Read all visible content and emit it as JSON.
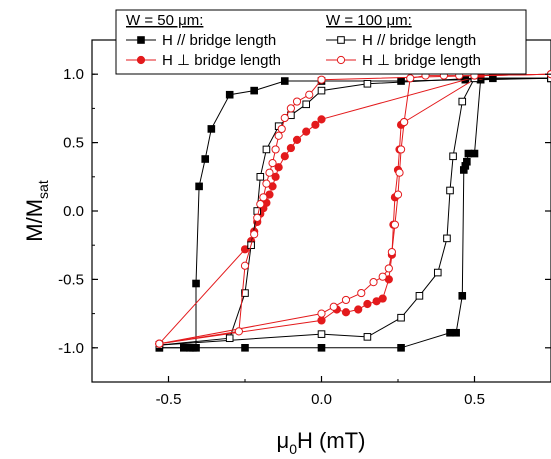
{
  "chart_data": {
    "type": "scatter",
    "xlabel": "μ0H (mT)",
    "ylabel": "M/Msat",
    "xlim": [
      -0.75,
      0.75
    ],
    "ylim": [
      -1.25,
      1.25
    ],
    "xticks": [
      -0.5,
      0.0,
      0.5
    ],
    "xtick_labels": [
      "-0.5",
      "0.0",
      "0.5"
    ],
    "yticks": [
      -1.0,
      -0.5,
      0.0,
      0.5,
      1.0
    ],
    "ytick_labels": [
      "-1.0",
      "-0.5",
      "0.0",
      "0.5",
      "1.0"
    ],
    "grid": false,
    "legend": {
      "placement": "top",
      "groups": [
        "W = 50 μm:",
        "W = 100 μm:"
      ]
    },
    "series": [
      {
        "name": "H // bridge length",
        "group": "W = 50 μm:",
        "color": "#000000",
        "marker": "square-filled",
        "x": [
          -0.53,
          -0.41,
          -0.42,
          -0.43,
          -0.45,
          -0.5,
          -0.53
        ],
        "y": [
          -0.97,
          -0.98,
          -0.97,
          -0.96,
          -0.99,
          -1.0,
          -1.0
        ],
        "segments": [
          {
            "x": [
              -0.53,
              -0.45,
              -0.43,
              -0.42,
              -0.41,
              -0.41,
              -0.4,
              -0.38,
              -0.36,
              -0.3,
              -0.22,
              -0.12,
              0.0,
              0.26,
              0.47,
              0.52,
              0.56,
              0.75
            ],
            "y": [
              -1.0,
              -1.0,
              -1.0,
              -1.0,
              -1.0,
              -0.53,
              0.18,
              0.38,
              0.6,
              0.85,
              0.88,
              0.95,
              0.95,
              0.95,
              0.96,
              0.96,
              0.97,
              0.97
            ]
          },
          {
            "x": [
              0.75,
              0.52,
              0.5,
              0.48,
              0.475,
              0.47,
              0.465,
              0.46,
              0.44,
              0.42,
              0.26,
              0.0,
              -0.25,
              -0.53
            ],
            "y": [
              0.97,
              0.96,
              0.42,
              0.42,
              0.36,
              0.33,
              0.3,
              -0.62,
              -0.89,
              -0.89,
              -1.0,
              -1.0,
              -1.0,
              -1.0
            ]
          }
        ]
      },
      {
        "name": "H ⊥ bridge length",
        "group": "W = 50 μm:",
        "color": "#e31a1c",
        "marker": "circle-filled",
        "segments": [
          {
            "x": [
              -0.53,
              -0.25,
              -0.23,
              -0.22,
              -0.21,
              -0.2,
              -0.19,
              -0.18,
              -0.17,
              -0.16,
              -0.15,
              -0.14,
              -0.12,
              -0.1,
              -0.08,
              -0.05,
              -0.02,
              0.0,
              0.52,
              0.75
            ],
            "y": [
              -0.97,
              -0.28,
              -0.22,
              -0.15,
              -0.08,
              -0.02,
              0.02,
              0.06,
              0.12,
              0.18,
              0.25,
              0.32,
              0.4,
              0.46,
              0.52,
              0.58,
              0.63,
              0.67,
              0.99,
              1.0
            ]
          },
          {
            "x": [
              0.75,
              0.52,
              0.27,
              0.26,
              0.255,
              0.25,
              0.24,
              0.235,
              0.23,
              0.22,
              0.2,
              0.18,
              0.15,
              0.12,
              0.08,
              0.05,
              0.0,
              -0.53
            ],
            "y": [
              1.0,
              0.99,
              0.65,
              0.63,
              0.45,
              0.3,
              0.1,
              -0.1,
              -0.32,
              -0.5,
              -0.64,
              -0.66,
              -0.68,
              -0.72,
              -0.74,
              -0.72,
              -0.8,
              -0.97
            ]
          }
        ]
      },
      {
        "name": "H // bridge length",
        "group": "W = 100 μm:",
        "color": "#000000",
        "marker": "square-open",
        "segments": [
          {
            "x": [
              -0.53,
              -0.3,
              -0.25,
              -0.23,
              -0.21,
              -0.2,
              -0.18,
              -0.14,
              -0.1,
              -0.05,
              0.0,
              0.15,
              0.5,
              0.75
            ],
            "y": [
              -0.98,
              -0.93,
              -0.6,
              -0.25,
              0.0,
              0.25,
              0.45,
              0.62,
              0.7,
              0.78,
              0.88,
              0.93,
              0.97,
              0.97
            ]
          },
          {
            "x": [
              0.75,
              0.5,
              0.46,
              0.43,
              0.42,
              0.41,
              0.38,
              0.32,
              0.26,
              0.15,
              0.0,
              -0.53
            ],
            "y": [
              0.97,
              0.97,
              0.8,
              0.4,
              0.15,
              -0.2,
              -0.45,
              -0.62,
              -0.78,
              -0.92,
              -0.9,
              -0.98
            ]
          }
        ]
      },
      {
        "name": "H ⊥ bridge length",
        "group": "W = 100 μm:",
        "color": "#e31a1c",
        "marker": "circle-open",
        "segments": [
          {
            "x": [
              -0.53,
              -0.27,
              -0.25,
              -0.22,
              -0.21,
              -0.2,
              -0.19,
              -0.18,
              -0.17,
              -0.16,
              -0.15,
              -0.14,
              -0.13,
              -0.12,
              -0.1,
              -0.08,
              -0.04,
              0.0,
              0.5,
              0.75
            ],
            "y": [
              -0.97,
              -0.88,
              -0.4,
              -0.17,
              -0.05,
              0.05,
              0.1,
              0.2,
              0.28,
              0.35,
              0.45,
              0.55,
              0.6,
              0.68,
              0.75,
              0.8,
              0.85,
              0.96,
              0.99,
              1.0
            ]
          },
          {
            "x": [
              0.75,
              0.5,
              0.45,
              0.4,
              0.34,
              0.29,
              0.27,
              0.26,
              0.255,
              0.25,
              0.24,
              0.23,
              0.22,
              0.2,
              0.17,
              0.13,
              0.08,
              0.04,
              0.0,
              -0.53
            ],
            "y": [
              1.0,
              0.99,
              0.99,
              0.99,
              0.99,
              0.97,
              0.65,
              0.45,
              0.28,
              0.12,
              -0.1,
              -0.3,
              -0.42,
              -0.48,
              -0.52,
              -0.6,
              -0.65,
              -0.7,
              -0.75,
              -0.97
            ]
          }
        ]
      }
    ]
  }
}
